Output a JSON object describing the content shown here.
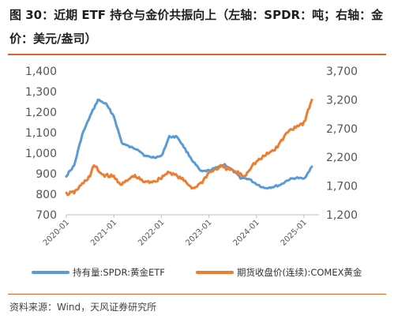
{
  "header": {
    "title": "图 30：近期 ETF 持仓与金价共振向上（左轴：SPDR：吨；右轴：金价：美元/盎司）"
  },
  "footer": {
    "source": "资料来源：Wind，天风证券研究所"
  },
  "chart_data": {
    "type": "line",
    "title": "",
    "x_tick_labels": [
      "2020-01",
      "2021-01",
      "2022-01",
      "2023-01",
      "2024-01",
      "2025-01"
    ],
    "y_left": {
      "min": 700,
      "max": 1400,
      "step": 100,
      "tick_labels": [
        "700",
        "800",
        "900",
        "1,000",
        "1,100",
        "1,200",
        "1,300",
        "1,400"
      ]
    },
    "y_right": {
      "min": 1200,
      "max": 3700,
      "step": 500,
      "tick_labels": [
        "1,200",
        "1,700",
        "2,200",
        "2,700",
        "3,200",
        "3,700"
      ]
    },
    "legend_position": "bottom",
    "grid": false,
    "series": [
      {
        "name": "持有量:SPDR:黄金ETF",
        "axis": "left",
        "color": "#5b9bd5",
        "points": [
          [
            "2020-01",
            890
          ],
          [
            "2020-03",
            940
          ],
          [
            "2020-05",
            1090
          ],
          [
            "2020-07",
            1180
          ],
          [
            "2020-09",
            1260
          ],
          [
            "2020-11",
            1240
          ],
          [
            "2021-01",
            1180
          ],
          [
            "2021-03",
            1050
          ],
          [
            "2021-05",
            1030
          ],
          [
            "2021-07",
            1020
          ],
          [
            "2021-09",
            985
          ],
          [
            "2021-11",
            980
          ],
          [
            "2022-01",
            985
          ],
          [
            "2022-03",
            1080
          ],
          [
            "2022-05",
            1080
          ],
          [
            "2022-07",
            1020
          ],
          [
            "2022-09",
            960
          ],
          [
            "2022-11",
            910
          ],
          [
            "2023-01",
            915
          ],
          [
            "2023-03",
            930
          ],
          [
            "2023-05",
            945
          ],
          [
            "2023-07",
            915
          ],
          [
            "2023-09",
            880
          ],
          [
            "2023-11",
            875
          ],
          [
            "2024-01",
            850
          ],
          [
            "2024-03",
            830
          ],
          [
            "2024-05",
            835
          ],
          [
            "2024-07",
            845
          ],
          [
            "2024-09",
            870
          ],
          [
            "2024-11",
            880
          ],
          [
            "2025-01",
            875
          ],
          [
            "2025-03",
            935
          ]
        ]
      },
      {
        "name": "期货收盘价(连续):COMEX黄金",
        "axis": "right",
        "color": "#ed7d31",
        "points": [
          [
            "2020-01",
            1560
          ],
          [
            "2020-03",
            1590
          ],
          [
            "2020-05",
            1730
          ],
          [
            "2020-07",
            1880
          ],
          [
            "2020-08",
            2060
          ],
          [
            "2020-10",
            1900
          ],
          [
            "2021-01",
            1860
          ],
          [
            "2021-03",
            1720
          ],
          [
            "2021-06",
            1880
          ],
          [
            "2021-09",
            1760
          ],
          [
            "2021-12",
            1800
          ],
          [
            "2022-03",
            1950
          ],
          [
            "2022-06",
            1830
          ],
          [
            "2022-09",
            1660
          ],
          [
            "2022-11",
            1750
          ],
          [
            "2023-01",
            1930
          ],
          [
            "2023-04",
            2040
          ],
          [
            "2023-07",
            1970
          ],
          [
            "2023-10",
            1870
          ],
          [
            "2023-12",
            2070
          ],
          [
            "2024-03",
            2220
          ],
          [
            "2024-06",
            2360
          ],
          [
            "2024-09",
            2650
          ],
          [
            "2024-11",
            2740
          ],
          [
            "2025-01",
            2800
          ],
          [
            "2025-03",
            3200
          ]
        ]
      }
    ]
  }
}
